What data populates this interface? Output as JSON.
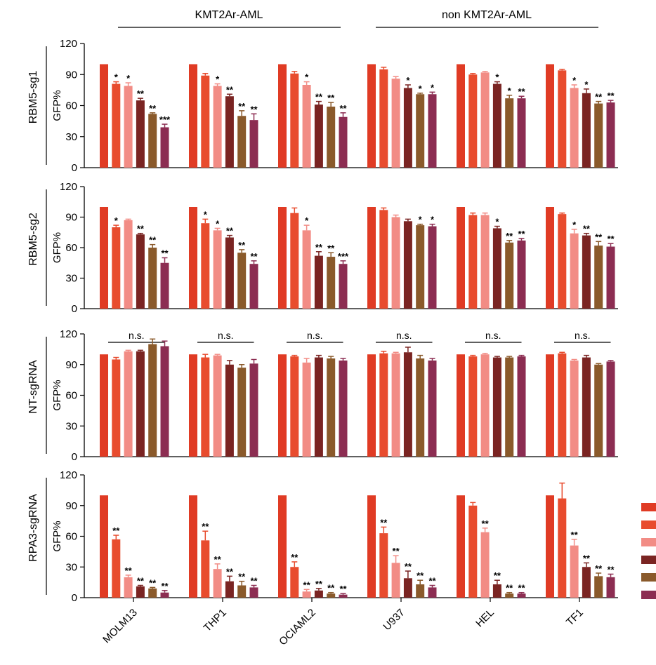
{
  "chart_data": {
    "type": "bar",
    "group_labels": [
      "KMT2Ar-AML",
      "non KMT2Ar-AML"
    ],
    "cell_lines": [
      "MOLM13",
      "THP1",
      "OCIAML2",
      "U937",
      "HEL",
      "TF1"
    ],
    "series_colors": [
      "#e03b24",
      "#e84c2e",
      "#f28c85",
      "#7a2422",
      "#8a5a2b",
      "#8c2d52"
    ],
    "ylabel": "GFP%",
    "yticks": [
      "0",
      "30",
      "60",
      "90",
      "120"
    ],
    "ylim": [
      0,
      120
    ],
    "panels": [
      {
        "row_label": "RBM5-sg1",
        "values": [
          [
            100,
            81,
            79,
            65,
            52,
            39
          ],
          [
            100,
            89,
            79,
            69,
            50,
            46
          ],
          [
            100,
            91,
            80,
            61,
            59,
            49
          ],
          [
            100,
            95,
            86,
            77,
            71,
            71
          ],
          [
            100,
            90,
            92,
            81,
            67,
            67
          ],
          [
            100,
            94,
            77,
            72,
            62,
            63
          ]
        ],
        "errors": [
          [
            0,
            2,
            3,
            2,
            1,
            3
          ],
          [
            0,
            2,
            2,
            2,
            5,
            6
          ],
          [
            0,
            2,
            3,
            3,
            4,
            4
          ],
          [
            0,
            2,
            2,
            3,
            1,
            2
          ],
          [
            0,
            1,
            1,
            2,
            3,
            2
          ],
          [
            0,
            1,
            3,
            4,
            2,
            2
          ]
        ],
        "stars": [
          [
            "",
            "*",
            "*",
            "**",
            "**",
            "***"
          ],
          [
            "",
            "",
            "*",
            "**",
            "**",
            "**"
          ],
          [
            "",
            "",
            "*",
            "**",
            "**",
            "**"
          ],
          [
            "",
            "",
            "",
            "*",
            "*",
            "*"
          ],
          [
            "",
            "",
            "",
            "*",
            "*",
            "**"
          ],
          [
            "",
            "",
            "*",
            "*",
            "**",
            "**"
          ]
        ],
        "ns": []
      },
      {
        "row_label": "RBM5-sg2",
        "values": [
          [
            100,
            80,
            87,
            73,
            60,
            45
          ],
          [
            100,
            84,
            77,
            70,
            55,
            44
          ],
          [
            100,
            94,
            77,
            52,
            51,
            44
          ],
          [
            100,
            97,
            90,
            86,
            82,
            81
          ],
          [
            100,
            92,
            92,
            79,
            65,
            67
          ],
          [
            100,
            93,
            74,
            72,
            62,
            61
          ]
        ],
        "errors": [
          [
            0,
            2,
            1,
            1,
            3,
            5
          ],
          [
            0,
            4,
            2,
            2,
            3,
            3
          ],
          [
            0,
            5,
            5,
            4,
            4,
            3
          ],
          [
            0,
            2,
            2,
            2,
            1,
            2
          ],
          [
            0,
            2,
            2,
            2,
            2,
            2
          ],
          [
            0,
            1,
            4,
            2,
            4,
            3
          ]
        ],
        "stars": [
          [
            "",
            "*",
            "",
            "**",
            "**",
            "**"
          ],
          [
            "",
            "*",
            "*",
            "**",
            "**",
            "**"
          ],
          [
            "",
            "",
            "*",
            "**",
            "**",
            "***"
          ],
          [
            "",
            "",
            "",
            "",
            "*",
            "*"
          ],
          [
            "",
            "",
            "",
            "*",
            "**",
            "**"
          ],
          [
            "",
            "",
            "*",
            "**",
            "**",
            "**"
          ]
        ],
        "ns": []
      },
      {
        "row_label": "NT-sgRNA",
        "values": [
          [
            100,
            95,
            103,
            103,
            110,
            108
          ],
          [
            100,
            97,
            99,
            90,
            87,
            91
          ],
          [
            100,
            98,
            92,
            97,
            96,
            94
          ],
          [
            100,
            101,
            101,
            102,
            96,
            94
          ],
          [
            100,
            98,
            100,
            97,
            97,
            98
          ],
          [
            100,
            101,
            94,
            97,
            90,
            93
          ]
        ],
        "errors": [
          [
            0,
            2,
            1,
            1,
            5,
            5
          ],
          [
            0,
            3,
            1,
            4,
            3,
            4
          ],
          [
            0,
            1,
            4,
            2,
            2,
            2
          ],
          [
            0,
            2,
            1,
            5,
            3,
            2
          ],
          [
            0,
            1,
            1,
            1,
            1,
            1
          ],
          [
            0,
            1,
            1,
            2,
            1,
            1
          ]
        ],
        "stars": [],
        "ns": [
          "n.s.",
          "n.s.",
          "n.s.",
          "n.s.",
          "n.s.",
          "n.s."
        ]
      },
      {
        "row_label": "RPA3-sgRNA",
        "values": [
          [
            100,
            57,
            20,
            11,
            9,
            5
          ],
          [
            100,
            56,
            28,
            16,
            12,
            10
          ],
          [
            100,
            30,
            6,
            7,
            4,
            3
          ],
          [
            100,
            63,
            34,
            19,
            13,
            10
          ],
          [
            100,
            90,
            64,
            13,
            4,
            4
          ],
          [
            100,
            97,
            51,
            30,
            21,
            20
          ]
        ],
        "errors": [
          [
            0,
            4,
            2,
            1,
            1,
            2
          ],
          [
            0,
            9,
            5,
            5,
            4,
            2
          ],
          [
            0,
            5,
            2,
            2,
            1,
            1
          ],
          [
            0,
            6,
            7,
            7,
            4,
            2
          ],
          [
            0,
            3,
            4,
            4,
            1,
            1
          ],
          [
            0,
            15,
            6,
            4,
            3,
            3
          ]
        ],
        "stars": [
          [
            "",
            "**",
            "**",
            "**",
            "**",
            "**"
          ],
          [
            "",
            "**",
            "**",
            "**",
            "**",
            "**"
          ],
          [
            "",
            "**",
            "**",
            "**",
            "**",
            "**"
          ],
          [
            "",
            "**",
            "**",
            "**",
            "**",
            "**"
          ],
          [
            "",
            "",
            "**",
            "**",
            "**",
            "**"
          ],
          [
            "",
            "",
            "**",
            "**",
            "**",
            "**"
          ]
        ],
        "ns": []
      }
    ]
  }
}
